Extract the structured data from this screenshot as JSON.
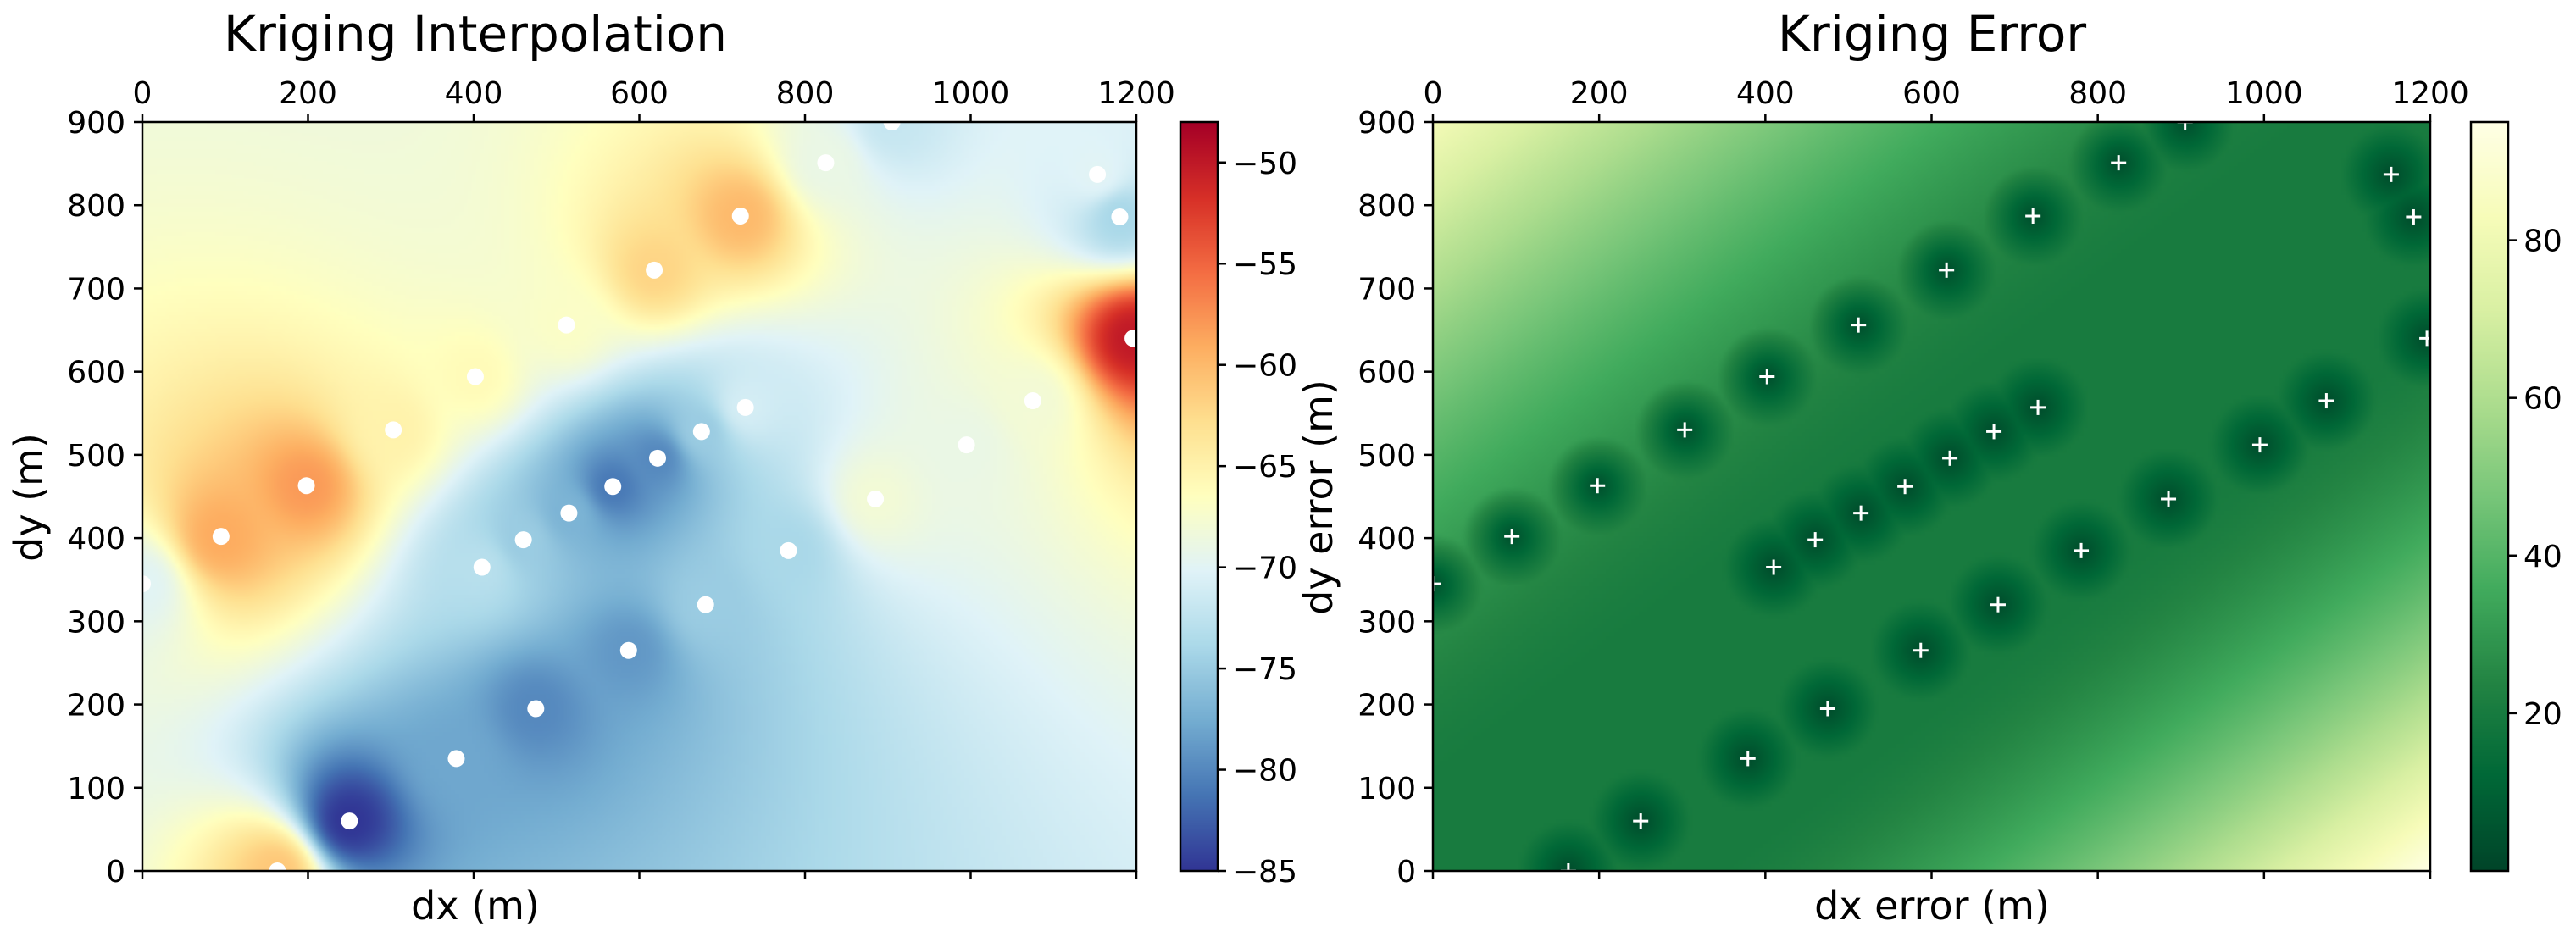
{
  "chart_data": [
    {
      "type": "heatmap",
      "title": "Kriging Interpolation",
      "xlabel": "dx (m)",
      "ylabel": "dy (m)",
      "xlim": [
        0,
        1200
      ],
      "ylim": [
        0,
        900
      ],
      "x_ticks": [
        0,
        200,
        400,
        600,
        800,
        1000,
        1200
      ],
      "y_ticks": [
        0,
        100,
        200,
        300,
        400,
        500,
        600,
        700,
        800,
        900
      ],
      "x_tick_position": "top",
      "colormap": "RdYlBu_r",
      "colorbar": {
        "min": -85,
        "max": -48,
        "ticks": [
          -50,
          -55,
          -60,
          -65,
          -70,
          -75,
          -80,
          -85
        ]
      },
      "marker": "white circle",
      "marker_color": "#ffffff",
      "grid": false
    },
    {
      "type": "heatmap",
      "title": "Kriging Error",
      "xlabel": "dx error (m)",
      "ylabel": "dy error (m)",
      "xlim": [
        0,
        1200
      ],
      "ylim": [
        0,
        900
      ],
      "x_ticks": [
        0,
        200,
        400,
        600,
        800,
        1000,
        1200
      ],
      "y_ticks": [
        0,
        100,
        200,
        300,
        400,
        500,
        600,
        700,
        800,
        900
      ],
      "x_tick_position": "top",
      "colormap": "YlGn_r",
      "colorbar": {
        "min": 0,
        "max": 95,
        "ticks": [
          20,
          40,
          60,
          80
        ]
      },
      "marker": "white plus",
      "marker_color": "#ffffff",
      "grid": false
    }
  ],
  "sample_points": [
    {
      "x": 0,
      "y": 345,
      "value": -70
    },
    {
      "x": 95,
      "y": 402,
      "value": -59
    },
    {
      "x": 198,
      "y": 463,
      "value": -58
    },
    {
      "x": 163,
      "y": 0,
      "value": -61
    },
    {
      "x": 250,
      "y": 60,
      "value": -85
    },
    {
      "x": 303,
      "y": 530,
      "value": -65
    },
    {
      "x": 379,
      "y": 135,
      "value": -78
    },
    {
      "x": 402,
      "y": 594,
      "value": -66
    },
    {
      "x": 410,
      "y": 365,
      "value": -73
    },
    {
      "x": 460,
      "y": 398,
      "value": -75
    },
    {
      "x": 475,
      "y": 195,
      "value": -80
    },
    {
      "x": 512,
      "y": 656,
      "value": -67
    },
    {
      "x": 515,
      "y": 430,
      "value": -77
    },
    {
      "x": 568,
      "y": 462,
      "value": -81
    },
    {
      "x": 587,
      "y": 265,
      "value": -79
    },
    {
      "x": 618,
      "y": 722,
      "value": -62
    },
    {
      "x": 622,
      "y": 496,
      "value": -80
    },
    {
      "x": 675,
      "y": 528,
      "value": -75
    },
    {
      "x": 680,
      "y": 320,
      "value": -75
    },
    {
      "x": 722,
      "y": 787,
      "value": -60
    },
    {
      "x": 728,
      "y": 557,
      "value": -71
    },
    {
      "x": 780,
      "y": 385,
      "value": -74
    },
    {
      "x": 825,
      "y": 851,
      "value": -69
    },
    {
      "x": 885,
      "y": 447,
      "value": -68
    },
    {
      "x": 905,
      "y": 900,
      "value": -72
    },
    {
      "x": 995,
      "y": 512,
      "value": -69
    },
    {
      "x": 1075,
      "y": 565,
      "value": -68
    },
    {
      "x": 1153,
      "y": 837,
      "value": -70
    },
    {
      "x": 1180,
      "y": 786,
      "value": -74
    },
    {
      "x": 1196,
      "y": 640,
      "value": -50
    }
  ]
}
